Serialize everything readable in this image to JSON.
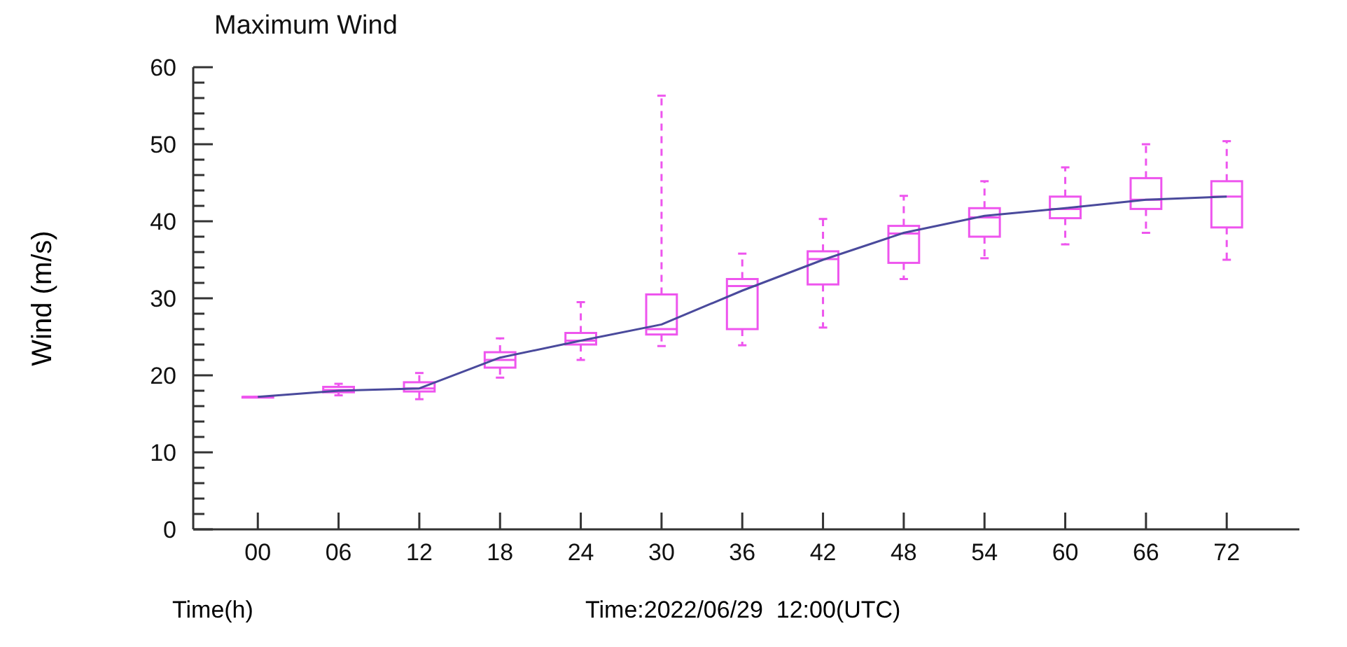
{
  "chart_data": {
    "type": "box",
    "title": "Maximum Wind",
    "ylabel": "Wind (m/s)",
    "xlabel": "Time(h)",
    "annotations": [
      "Time:2022/06/29  12:00(UTC)"
    ],
    "categories": [
      "00",
      "06",
      "12",
      "18",
      "24",
      "30",
      "36",
      "42",
      "48",
      "54",
      "60",
      "66",
      "72"
    ],
    "ylim": [
      0,
      60
    ],
    "yticks": [
      0,
      {
        "value": 2,
        "label": null
      },
      {
        "value": 4,
        "label": null
      },
      {
        "value": 6,
        "label": null
      },
      {
        "value": 8,
        "label": null
      },
      10,
      {
        "value": 12,
        "label": null
      },
      {
        "value": 14,
        "label": null
      },
      {
        "value": 16,
        "label": null
      },
      {
        "value": 18,
        "label": null
      },
      20,
      {
        "value": 22,
        "label": null
      },
      {
        "value": 24,
        "label": null
      },
      {
        "value": 26,
        "label": null
      },
      {
        "value": 28,
        "label": null
      },
      30,
      {
        "value": 32,
        "label": null
      },
      {
        "value": 34,
        "label": null
      },
      {
        "value": 36,
        "label": null
      },
      {
        "value": 38,
        "label": null
      },
      40,
      {
        "value": 42,
        "label": null
      },
      {
        "value": 44,
        "label": null
      },
      {
        "value": 46,
        "label": null
      },
      {
        "value": 48,
        "label": null
      },
      50,
      {
        "value": 52,
        "label": null
      },
      {
        "value": 54,
        "label": null
      },
      {
        "value": 56,
        "label": null
      },
      {
        "value": 58,
        "label": null
      },
      60
    ],
    "series": [
      {
        "color": "#ee55ee",
        "boxes": [
          {
            "low": 17.2,
            "q1": 17.2,
            "median": 17.2,
            "q3": 17.2,
            "high": 17.2
          },
          {
            "low": 17.4,
            "q1": 17.8,
            "median": 18.1,
            "q3": 18.5,
            "high": 18.9
          },
          {
            "low": 16.9,
            "q1": 17.9,
            "median": 18.3,
            "q3": 19.1,
            "high": 20.3
          },
          {
            "low": 19.7,
            "q1": 21.0,
            "median": 22.0,
            "q3": 23.0,
            "high": 24.8
          },
          {
            "low": 22.0,
            "q1": 24.0,
            "median": 24.5,
            "q3": 25.5,
            "high": 29.5
          },
          {
            "low": 23.8,
            "q1": 25.3,
            "median": 26.0,
            "q3": 30.5,
            "high": 56.3
          },
          {
            "low": 23.9,
            "q1": 26.0,
            "median": 31.6,
            "q3": 32.5,
            "high": 35.8
          },
          {
            "low": 26.2,
            "q1": 31.8,
            "median": 35.1,
            "q3": 36.1,
            "high": 40.3
          },
          {
            "low": 32.5,
            "q1": 34.6,
            "median": 38.4,
            "q3": 39.4,
            "high": 43.3
          },
          {
            "low": 35.2,
            "q1": 38.0,
            "median": 40.5,
            "q3": 41.7,
            "high": 45.2
          },
          {
            "low": 37.0,
            "q1": 40.4,
            "median": 41.6,
            "q3": 43.2,
            "high": 47.0
          },
          {
            "low": 38.5,
            "q1": 41.6,
            "median": 42.8,
            "q3": 45.6,
            "high": 50.0
          },
          {
            "low": 35.0,
            "q1": 39.2,
            "median": 43.2,
            "q3": 45.2,
            "high": 50.4
          }
        ]
      },
      {
        "type": "line",
        "color": "#4a4a9c",
        "values": [
          17.2,
          18.0,
          18.3,
          22.3,
          24.5,
          26.6,
          31.0,
          35.0,
          38.5,
          40.7,
          41.7,
          42.8,
          43.2
        ]
      }
    ],
    "grid": false,
    "legend": false
  }
}
